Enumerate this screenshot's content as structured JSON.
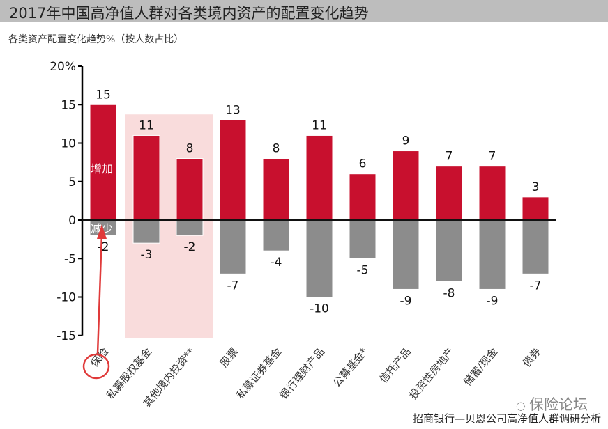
{
  "title": "2017年中国高净值人群对各类境内资产的配置变化趋势",
  "subtitle": "各类资产配置变化趋势%（按人数占比）",
  "source": "招商银行—贝恩公司高净值人群调研分析",
  "watermark": "保险论坛",
  "annotations": {
    "increase": "增加",
    "decrease": "减少"
  },
  "colors": {
    "increase": "#c8102e",
    "decrease": "#8c8c8c",
    "highlight": "#f9dcdc",
    "marker": "#e03a3a"
  },
  "chart_data": {
    "type": "bar",
    "categories": [
      "保险",
      "私募股权基金",
      "其他境内投资**",
      "股票",
      "私募证券基金",
      "银行理财产品",
      "公募基金*",
      "信托产品",
      "投资性房地产",
      "储蓄/现金",
      "债券"
    ],
    "series": [
      {
        "name": "增加",
        "values": [
          15,
          11,
          8,
          13,
          8,
          11,
          6,
          9,
          7,
          7,
          3
        ]
      },
      {
        "name": "减少",
        "values": [
          -2,
          -3,
          -2,
          -7,
          -4,
          -10,
          -5,
          -9,
          -8,
          -9,
          -7
        ]
      }
    ],
    "yticks": [
      "20%",
      "15",
      "10",
      "5",
      "0",
      "-5",
      "-10",
      "-15"
    ],
    "ylim": [
      -15,
      20
    ],
    "highlighted_categories": [
      "私募股权基金",
      "其他境内投资**"
    ],
    "circled_category": "保险",
    "grid": false
  }
}
